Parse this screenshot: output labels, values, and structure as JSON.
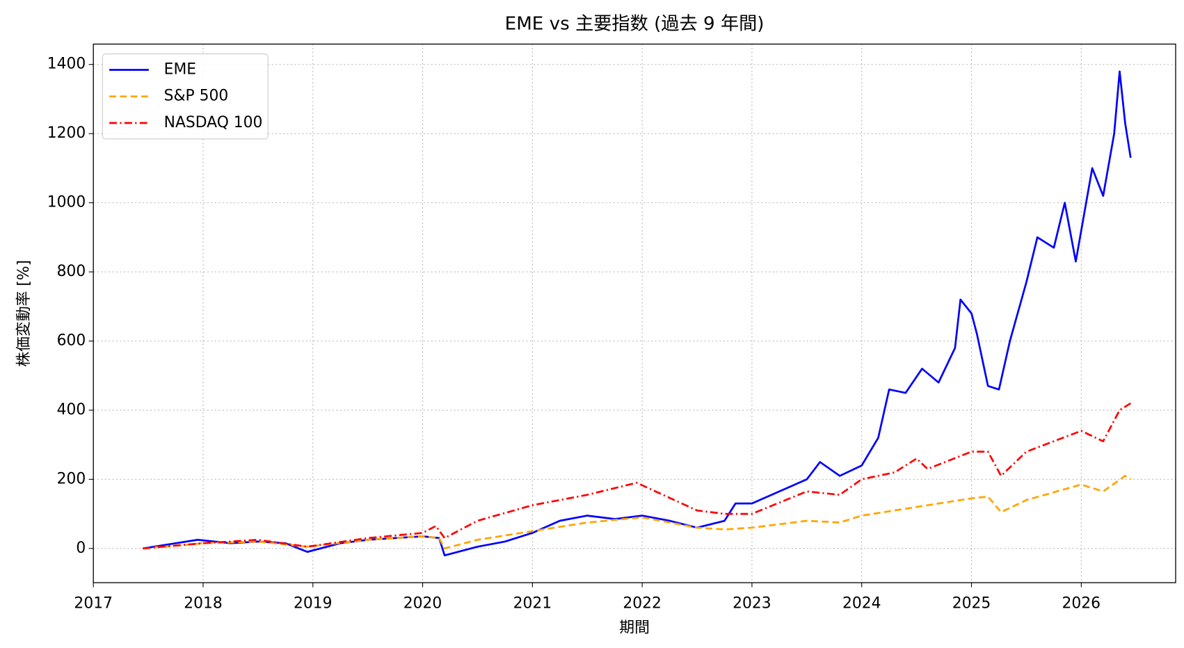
{
  "chart_data": {
    "type": "line",
    "title": "EME vs 主要指数 (過去 9 年間)",
    "xlabel": "期間",
    "ylabel": "株価変動率 [%]",
    "xlim": [
      2017,
      2026.86
    ],
    "xticks": [
      2017,
      2018,
      2019,
      2020,
      2021,
      2022,
      2023,
      2024,
      2025,
      2026
    ],
    "ylim": [
      -99,
      1459
    ],
    "yticks": [
      0,
      200,
      400,
      600,
      800,
      1000,
      1200,
      1400
    ],
    "grid": true,
    "legend": "upper left",
    "series": [
      {
        "name": "EME",
        "color": "#0000ff",
        "linestyle": "solid",
        "x": [
          2017.45,
          2017.75,
          2017.95,
          2018.25,
          2018.5,
          2018.75,
          2018.95,
          2019.25,
          2019.5,
          2019.75,
          2020.0,
          2020.15,
          2020.2,
          2020.5,
          2020.75,
          2021.0,
          2021.25,
          2021.5,
          2021.75,
          2022.0,
          2022.25,
          2022.5,
          2022.75,
          2022.85,
          2023.0,
          2023.25,
          2023.5,
          2023.62,
          2023.8,
          2024.0,
          2024.15,
          2024.25,
          2024.4,
          2024.55,
          2024.7,
          2024.85,
          2024.9,
          2025.0,
          2025.05,
          2025.15,
          2025.25,
          2025.35,
          2025.5,
          2025.6,
          2025.75,
          2025.85,
          2025.95,
          2026.1,
          2026.2,
          2026.3,
          2026.35,
          2026.4,
          2026.45
        ],
        "values": [
          0,
          15,
          25,
          15,
          20,
          15,
          -10,
          15,
          25,
          30,
          35,
          30,
          -20,
          5,
          20,
          45,
          80,
          95,
          85,
          95,
          80,
          60,
          80,
          130,
          130,
          165,
          200,
          250,
          210,
          240,
          320,
          460,
          450,
          520,
          480,
          580,
          720,
          680,
          620,
          470,
          460,
          600,
          770,
          900,
          870,
          1000,
          830,
          1100,
          1020,
          1200,
          1380,
          1230,
          1130
        ]
      },
      {
        "name": "S&P 500",
        "color": "#ffa500",
        "linestyle": "dashed",
        "x": [
          2017.45,
          2018.0,
          2018.5,
          2018.95,
          2019.5,
          2020.0,
          2020.15,
          2020.2,
          2020.5,
          2021.0,
          2021.5,
          2022.0,
          2022.5,
          2022.75,
          2023.0,
          2023.5,
          2023.8,
          2024.0,
          2024.5,
          2025.0,
          2025.15,
          2025.27,
          2025.5,
          2026.0,
          2026.2,
          2026.4,
          2026.45
        ],
        "values": [
          0,
          15,
          20,
          5,
          25,
          35,
          30,
          0,
          25,
          50,
          75,
          90,
          60,
          55,
          60,
          80,
          75,
          95,
          120,
          145,
          150,
          105,
          140,
          185,
          165,
          210,
          200
        ]
      },
      {
        "name": "NASDAQ 100",
        "color": "#ff0000",
        "linestyle": "dashdot",
        "x": [
          2017.45,
          2018.0,
          2018.5,
          2018.95,
          2019.5,
          2020.0,
          2020.12,
          2020.2,
          2020.5,
          2021.0,
          2021.5,
          2021.95,
          2022.5,
          2022.75,
          2023.0,
          2023.5,
          2023.8,
          2024.0,
          2024.3,
          2024.5,
          2024.6,
          2025.0,
          2025.15,
          2025.27,
          2025.5,
          2026.0,
          2026.2,
          2026.35,
          2026.45
        ],
        "values": [
          0,
          15,
          25,
          5,
          30,
          45,
          65,
          30,
          80,
          125,
          155,
          190,
          110,
          100,
          100,
          165,
          155,
          200,
          220,
          260,
          230,
          280,
          280,
          210,
          280,
          340,
          310,
          400,
          420
        ]
      }
    ]
  }
}
